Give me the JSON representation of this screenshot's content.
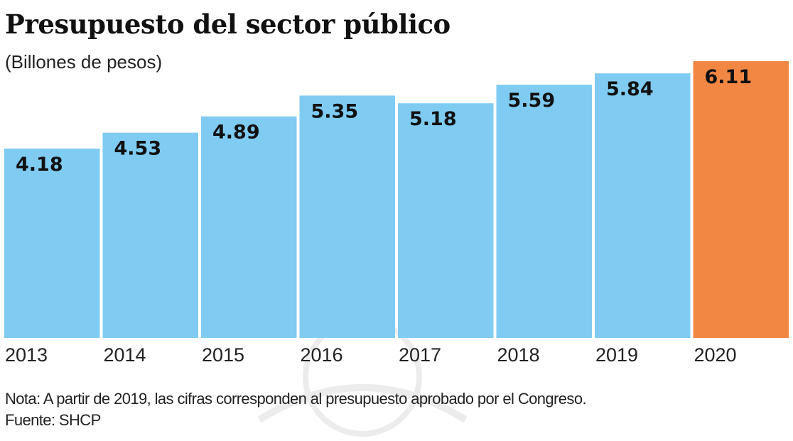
{
  "chart_data": {
    "type": "bar",
    "title": "Presupuesto del sector público",
    "subtitle": "(Billones de pesos)",
    "categories": [
      "2013",
      "2014",
      "2015",
      "2016",
      "2017",
      "2018",
      "2019",
      "2020"
    ],
    "values": [
      4.18,
      4.53,
      4.89,
      5.35,
      5.18,
      5.59,
      5.84,
      6.11
    ],
    "value_labels": [
      "4.18",
      "4.53",
      "4.89",
      "5.35",
      "5.18",
      "5.59",
      "5.84",
      "6.11"
    ],
    "highlight_index": 7,
    "colors": {
      "default": "#7fcbf2",
      "highlight": "#f28744"
    },
    "xlabel": "",
    "ylabel": "",
    "ylim": [
      0,
      6.11
    ],
    "grid": false
  },
  "footer": {
    "note": "Nota: A partir de 2019, las cifras corresponden al presupuesto aprobado por el Congreso.",
    "source": "Fuente: SHCP"
  }
}
